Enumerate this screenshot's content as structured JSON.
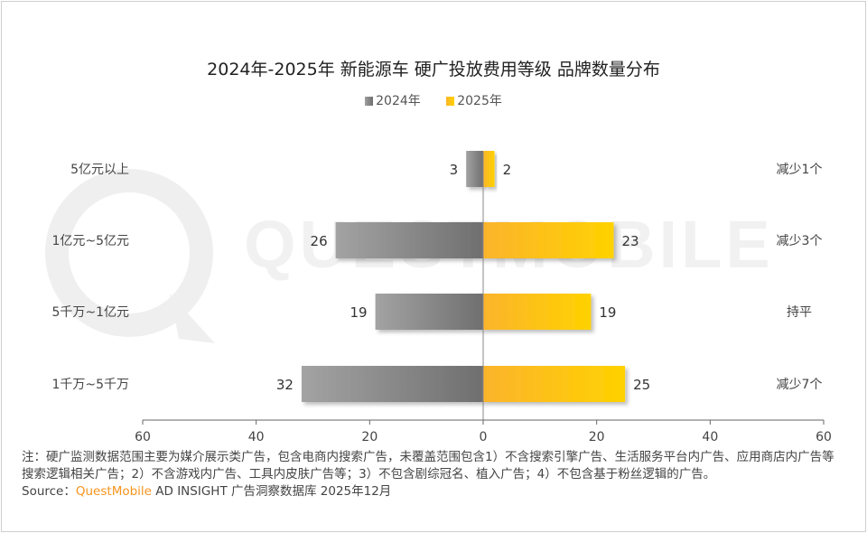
{
  "chart_data": {
    "type": "bar",
    "orientation": "horizontal-diverging",
    "title": "2024年-2025年 新能源车 硬广投放费用等级 品牌数量分布",
    "categories": [
      "5亿元以上",
      "1亿元~5亿元",
      "5千万~1亿元",
      "1千万~5千万"
    ],
    "series": [
      {
        "name": "2024年",
        "values": [
          3,
          26,
          19,
          32
        ],
        "color": "#808080",
        "side": "left"
      },
      {
        "name": "2025年",
        "values": [
          2,
          23,
          19,
          25
        ],
        "color": "#ffc000",
        "side": "right"
      }
    ],
    "annotations": [
      "减少1个",
      "减少3个",
      "持平",
      "减少7个"
    ],
    "xlim": [
      -60,
      60
    ],
    "xticks": [
      "60",
      "40",
      "20",
      "0",
      "20",
      "40",
      "60"
    ],
    "legend_position": "top",
    "grid": false
  },
  "watermark": "QUESTMOBILE",
  "footer": {
    "note": "注：硬广监测数据范围主要为媒介展示类广告，包含电商内搜索广告，未覆盖范围包含1）不含搜索引擎广告、生活服务平台内广告、应用商店内广告等搜索逻辑相关广告；2）不含游戏内广告、工具内皮肤广告等；3）不包含剧综冠名、植入广告；4）不包含基于粉丝逻辑的广告。",
    "source_label": "Source：",
    "source_brand": "QuestMobile",
    "source_rest": " AD INSIGHT 广告洞察数据库 2025年12月"
  }
}
